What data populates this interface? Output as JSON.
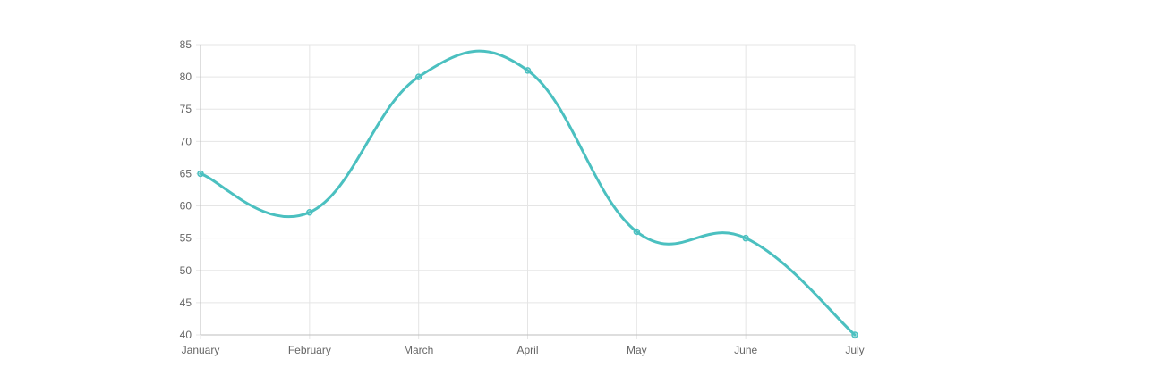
{
  "chart_data": {
    "type": "line",
    "categories": [
      "January",
      "February",
      "March",
      "April",
      "May",
      "June",
      "July"
    ],
    "series": [
      {
        "values": [
          65,
          59,
          80,
          81,
          56,
          55,
          40
        ],
        "color": "#4bc0c0"
      }
    ],
    "ylim": [
      40,
      85
    ],
    "yticks": [
      40,
      45,
      50,
      55,
      60,
      65,
      70,
      75,
      80,
      85
    ],
    "grid": true,
    "smooth": true,
    "colors": {
      "line": "#4bc0c0",
      "grid": "#e5e5e5",
      "axis": "#bdbdbd",
      "tick_text": "#666666"
    }
  }
}
